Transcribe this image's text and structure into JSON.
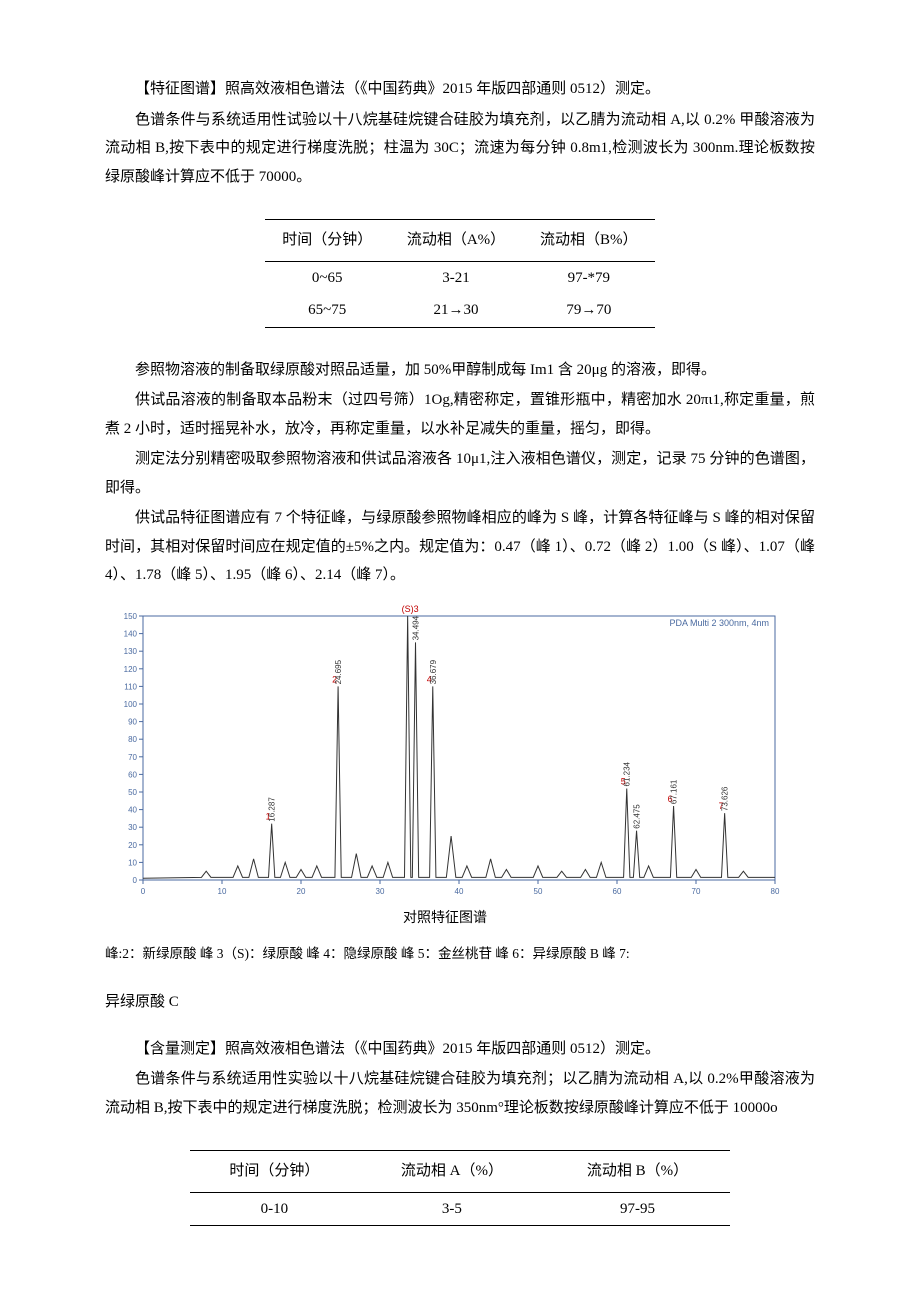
{
  "sec1": {
    "p1": "【特征图谱】照高效液相色谱法（《中国药典》2015 年版四部通则 0512）测定。",
    "p2": "色谱条件与系统适用性试验以十八烷基硅烷键合硅胶为填充剂，以乙腈为流动相 A,以 0.2% 甲酸溶液为流动相 B,按下表中的规定进行梯度洗脱；柱温为 30C；流速为每分钟 0.8m1,检测波长为 300nm.理论板数按绿原酸峰计算应不低于 70000。"
  },
  "table1": {
    "h1": "时间（分钟）",
    "h2": "流动相（A%）",
    "h3": "流动相（B%）",
    "r1c1": "0~65",
    "r1c2": "3-21",
    "r1c3": "97-*79",
    "r2c1": "65~75",
    "r2c2": "21→30",
    "r2c3": "79→70"
  },
  "sec2": {
    "p1": "参照物溶液的制备取绿原酸对照品适量，加 50%甲醇制成每 Im1 含 20μg 的溶液，即得。",
    "p2": "供试品溶液的制备取本品粉末（过四号筛）1Og,精密称定，置锥形瓶中，精密加水 20πι1,称定重量，煎煮 2 小时，适时摇晃补水，放冷，再称定重量，以水补足减失的重量，摇匀，即得。",
    "p3": "测定法分别精密吸取参照物溶液和供试品溶液各 10μ1,注入液相色谱仪，测定，记录 75 分钟的色谱图，即得。",
    "p4": "供试品特征图谱应有 7 个特征峰，与绿原酸参照物峰相应的峰为 S 峰，计算各特征峰与 S 峰的相对保留时间，其相对保留时间应在规定值的±5%之内。规定值为：0.47（峰 1）、0.72（峰 2）1.00（S 峰）、1.07（峰 4）、1.78（峰 5）、1.95（峰 6）、2.14（峰 7）。"
  },
  "chart": {
    "title": "PDA Multi 2 300nm, 4nm",
    "caption": "对照特征图谱",
    "y_ticks": [
      0,
      10,
      20,
      30,
      40,
      50,
      60,
      70,
      80,
      90,
      100,
      110,
      120,
      130,
      140,
      150
    ],
    "x_ticks": [
      0,
      10,
      20,
      30,
      40,
      50,
      60,
      70,
      80
    ],
    "peaks": [
      {
        "num": "1",
        "rt": "16.287",
        "x": 16.287,
        "h": 32
      },
      {
        "num": "2",
        "rt": "24.695",
        "x": 24.695,
        "h": 110
      },
      {
        "num": "(S)3",
        "rt": "",
        "x": 33.5,
        "h": 155,
        "red": true
      },
      {
        "num": "",
        "rt": "34.494",
        "x": 34.494,
        "h": 135
      },
      {
        "num": "4",
        "rt": "36.679",
        "x": 36.679,
        "h": 110
      },
      {
        "num": "5",
        "rt": "61.234",
        "x": 61.234,
        "h": 52
      },
      {
        "num": "",
        "rt": "62.475",
        "x": 62.475,
        "h": 28
      },
      {
        "num": "6",
        "rt": "67.161",
        "x": 67.161,
        "h": 42
      },
      {
        "num": "7",
        "rt": "73.626",
        "x": 73.626,
        "h": 38
      }
    ],
    "minor_peaks": [
      {
        "x": 8,
        "h": 5
      },
      {
        "x": 12,
        "h": 8
      },
      {
        "x": 14,
        "h": 12
      },
      {
        "x": 18,
        "h": 10
      },
      {
        "x": 20,
        "h": 6
      },
      {
        "x": 22,
        "h": 8
      },
      {
        "x": 27,
        "h": 15
      },
      {
        "x": 29,
        "h": 8
      },
      {
        "x": 31,
        "h": 10
      },
      {
        "x": 39,
        "h": 25
      },
      {
        "x": 41,
        "h": 8
      },
      {
        "x": 44,
        "h": 12
      },
      {
        "x": 46,
        "h": 6
      },
      {
        "x": 50,
        "h": 8
      },
      {
        "x": 53,
        "h": 5
      },
      {
        "x": 56,
        "h": 6
      },
      {
        "x": 58,
        "h": 10
      },
      {
        "x": 64,
        "h": 8
      },
      {
        "x": 70,
        "h": 6
      },
      {
        "x": 76,
        "h": 5
      }
    ]
  },
  "legend": {
    "l1": "峰:2：新绿原酸   峰 3（S)：绿原酸   峰 4：隐绿原酸   峰 5：金丝桃苷   峰 6：异绿原酸 B   峰 7:",
    "l2": "异绿原酸 C"
  },
  "sec3": {
    "p1": "【含量测定】照高效液相色谱法（《中国药典》2015 年版四部通则 0512）测定。",
    "p2": "色谱条件与系统适用性实验以十八烷基硅烷键合硅胶为填充剂；以乙腈为流动相 A,以 0.2%甲酸溶液为流动相 B,按下表中的规定进行梯度洗脱；检测波长为 350nm°理论板数按绿原酸峰计算应不低于 10000o"
  },
  "table2": {
    "h1": "时间（分钟）",
    "h2": "流动相 A（%）",
    "h3": "流动相 B（%）",
    "r1c1": "0-10",
    "r1c2": "3-5",
    "r1c3": "97-95"
  }
}
